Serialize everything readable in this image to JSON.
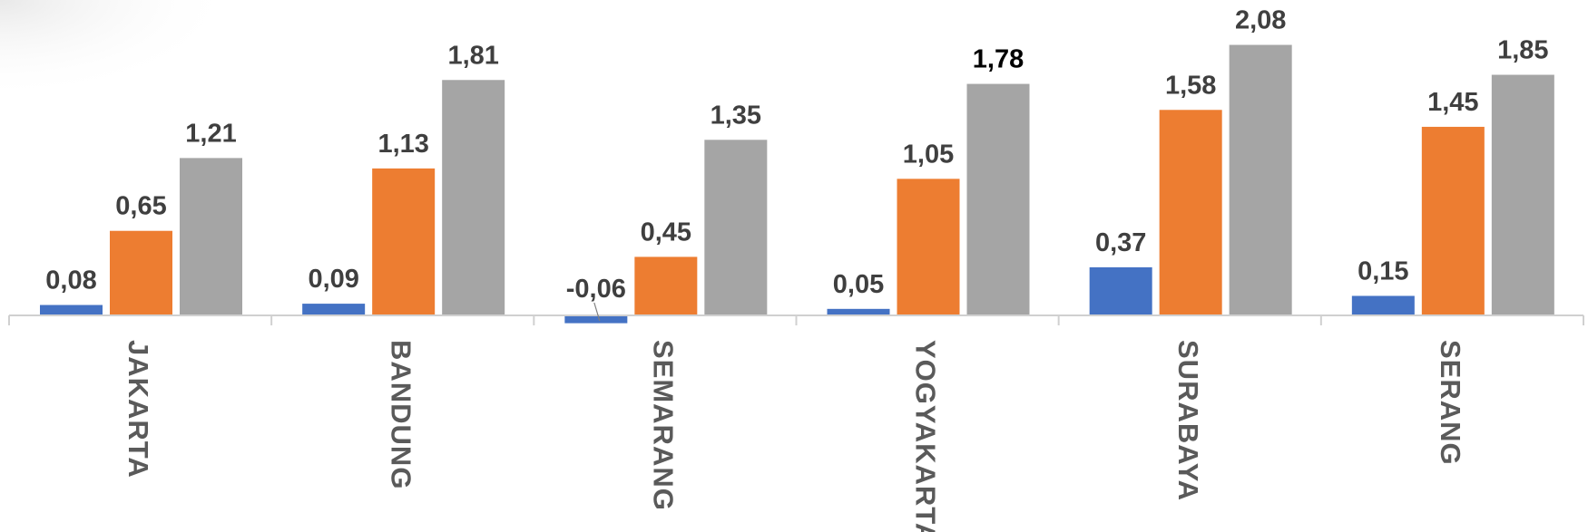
{
  "chart_data": {
    "type": "bar",
    "title": "",
    "xlabel": "",
    "ylabel": "",
    "categories": [
      "JAKARTA",
      "BANDUNG",
      "SEMARANG",
      "YOGYAKARTA",
      "SURABAYA",
      "SERANG"
    ],
    "series": [
      {
        "color": "#4472C4",
        "values": [
          0.08,
          0.09,
          -0.06,
          0.05,
          0.37,
          0.15
        ],
        "labels": [
          "0,08",
          "0,09",
          "-0,06",
          "0,05",
          "0,37",
          "0,15"
        ]
      },
      {
        "color": "#ED7D31",
        "values": [
          0.65,
          1.13,
          0.45,
          1.05,
          1.58,
          1.45
        ],
        "labels": [
          "0,65",
          "1,13",
          "0,45",
          "1,05",
          "1,58",
          "1,45"
        ]
      },
      {
        "color": "#A5A5A5",
        "values": [
          1.21,
          1.81,
          1.35,
          1.78,
          2.08,
          1.85
        ],
        "labels": [
          "1,21",
          "1,81",
          "1,35",
          "1,78",
          "2,08",
          "1,85"
        ]
      }
    ],
    "ylim": [
      -0.1,
      2.2
    ],
    "grid": false,
    "legend": "none"
  }
}
